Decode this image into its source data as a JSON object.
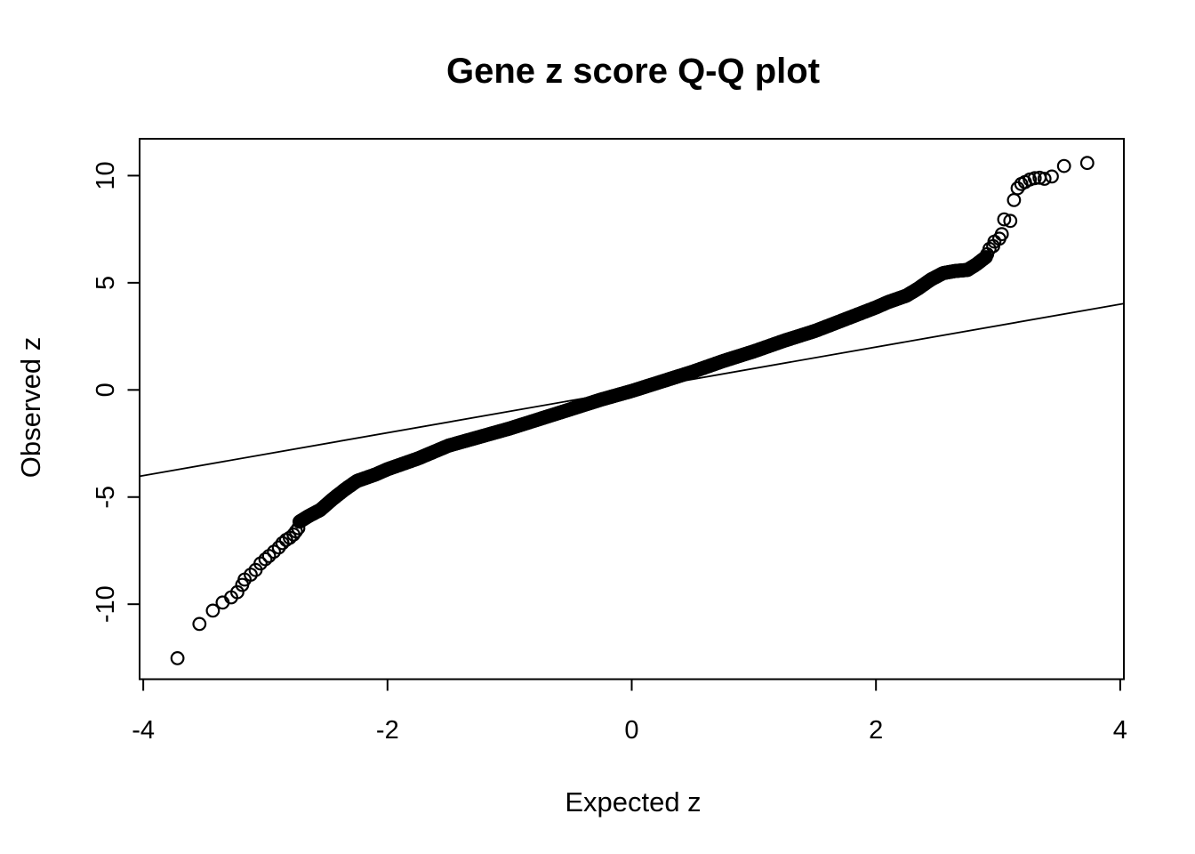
{
  "figure": {
    "background": "#ffffff",
    "foreground": "#000000"
  },
  "chart_data": {
    "type": "scatter",
    "variant": "normal-qq-plot",
    "title": "Gene z score Q-Q plot",
    "xlabel": "Expected z",
    "ylabel": "Observed z",
    "x_ticks": [
      "-4",
      "-2",
      "0",
      "2",
      "4"
    ],
    "x_tick_values": [
      -4,
      -2,
      0,
      2,
      4
    ],
    "y_ticks": [
      "-10",
      "-5",
      "0",
      "5",
      "10"
    ],
    "y_tick_values": [
      -10,
      -5,
      0,
      5,
      10
    ],
    "xlim": [
      -4.03,
      4.03
    ],
    "ylim": [
      -13.5,
      11.72
    ],
    "grid": false,
    "marker": {
      "shape": "open-circle",
      "radius_px": 6.8,
      "stroke_color": "#000000",
      "stroke_width_px": 2.2
    },
    "reference_line": {
      "slope": 1,
      "intercept": 0,
      "color": "#000000",
      "stroke_width_px": 1.8,
      "note": "y = x identity line spanning the full plot width"
    },
    "series": [
      {
        "name": "gene-z-scores-dense-band",
        "render": "band",
        "note": "thousands of overlapping open-circle points forming a solid black S-curve; positions interpolated through these (expected, observed) anchors",
        "x_range": [
          -2.72,
          2.9
        ],
        "anchors": [
          [
            -2.72,
            -6.15
          ],
          [
            -2.65,
            -5.9
          ],
          [
            -2.55,
            -5.6
          ],
          [
            -2.45,
            -5.1
          ],
          [
            -2.35,
            -4.65
          ],
          [
            -2.25,
            -4.25
          ],
          [
            -2.1,
            -3.95
          ],
          [
            -2.0,
            -3.7
          ],
          [
            -1.75,
            -3.2
          ],
          [
            -1.5,
            -2.6
          ],
          [
            -1.25,
            -2.2
          ],
          [
            -1.0,
            -1.8
          ],
          [
            -0.75,
            -1.35
          ],
          [
            -0.5,
            -0.9
          ],
          [
            -0.25,
            -0.45
          ],
          [
            0.0,
            -0.05
          ],
          [
            0.25,
            0.4
          ],
          [
            0.5,
            0.85
          ],
          [
            0.75,
            1.35
          ],
          [
            1.0,
            1.8
          ],
          [
            1.25,
            2.3
          ],
          [
            1.5,
            2.75
          ],
          [
            1.75,
            3.3
          ],
          [
            2.0,
            3.85
          ],
          [
            2.1,
            4.1
          ],
          [
            2.25,
            4.4
          ],
          [
            2.35,
            4.75
          ],
          [
            2.45,
            5.15
          ],
          [
            2.55,
            5.45
          ],
          [
            2.65,
            5.55
          ],
          [
            2.75,
            5.6
          ],
          [
            2.82,
            5.85
          ],
          [
            2.9,
            6.2
          ]
        ]
      },
      {
        "name": "lower-tail-outliers",
        "render": "points",
        "points": [
          [
            -3.72,
            -12.52
          ],
          [
            -3.54,
            -10.92
          ],
          [
            -3.43,
            -10.3
          ],
          [
            -3.35,
            -9.92
          ],
          [
            -3.28,
            -9.68
          ],
          [
            -3.23,
            -9.44
          ],
          [
            -3.19,
            -9.1
          ],
          [
            -3.17,
            -8.85
          ],
          [
            -3.12,
            -8.62
          ],
          [
            -3.08,
            -8.4
          ],
          [
            -3.04,
            -8.1
          ],
          [
            -3.0,
            -7.9
          ],
          [
            -2.97,
            -7.75
          ],
          [
            -2.93,
            -7.55
          ],
          [
            -2.89,
            -7.35
          ],
          [
            -2.86,
            -7.15
          ],
          [
            -2.83,
            -7.0
          ],
          [
            -2.8,
            -6.9
          ],
          [
            -2.77,
            -6.75
          ],
          [
            -2.75,
            -6.6
          ],
          [
            -2.73,
            -6.45
          ]
        ]
      },
      {
        "name": "upper-tail-outliers",
        "render": "points",
        "points": [
          [
            2.91,
            6.33
          ],
          [
            2.93,
            6.58
          ],
          [
            2.96,
            6.71
          ],
          [
            2.97,
            6.92
          ],
          [
            3.01,
            7.06
          ],
          [
            3.03,
            7.27
          ],
          [
            3.05,
            7.96
          ],
          [
            3.1,
            7.89
          ],
          [
            3.13,
            8.86
          ],
          [
            3.16,
            9.41
          ],
          [
            3.19,
            9.61
          ],
          [
            3.22,
            9.7
          ],
          [
            3.26,
            9.82
          ],
          [
            3.3,
            9.88
          ],
          [
            3.34,
            9.9
          ],
          [
            3.38,
            9.85
          ],
          [
            3.44,
            9.96
          ],
          [
            3.54,
            10.45
          ],
          [
            3.73,
            10.59
          ]
        ]
      }
    ]
  }
}
